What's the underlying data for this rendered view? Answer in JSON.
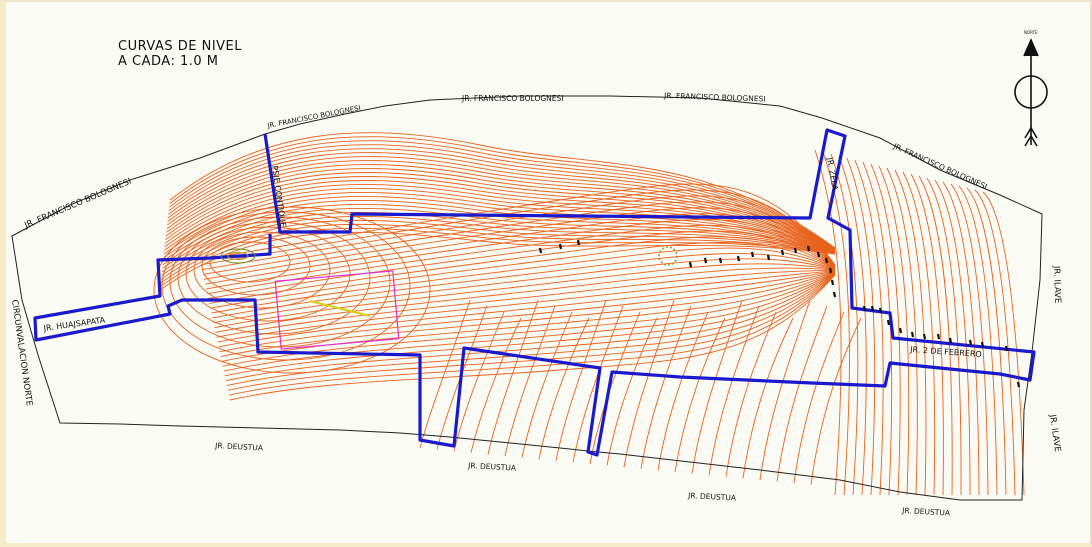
{
  "title": {
    "line1": "CURVAS DE NIVEL",
    "line2": "A CADA: 1.0 M"
  },
  "north_arrow": {
    "icon": "north-arrow-icon",
    "label": "NORTE"
  },
  "colors": {
    "contour": "#e8621c",
    "road_edge": "#1a1acc",
    "boundary": "#222222",
    "parcel": "#e02fd2",
    "parcel_label": "#d8d010",
    "background": "#fbfbf5"
  },
  "streets": {
    "bolognesi_1": "JR. FRANCISCO BOLOGNESI",
    "bolognesi_2": "JR. FRANCISCO BOLOGNESI",
    "bolognesi_3": "JR. FRANCISCO BOLOGNESI",
    "bolognesi_4": "JR. FRANCISCO BOLOGNESI",
    "bolognesi_5": "JR. FRANCISCO BOLOGNESI",
    "psje_contique": "PSJE CONTIQUE",
    "zela": "JR. ZELA",
    "huajsapata": "JR. HUAJSAPATA",
    "circunvalacion": "CIRCUNVALACION NORTE",
    "dos_febrero": "JR. 2 DE FEBRERO",
    "ilave_1": "JR. ILAVE",
    "ilave_2": "JR. ILAVE",
    "deustua_1": "JR. DEUSTUA",
    "deustua_2": "JR. DEUSTUA",
    "deustua_3": "JR. DEUSTUA",
    "deustua_4": "JR. DEUSTUA"
  }
}
